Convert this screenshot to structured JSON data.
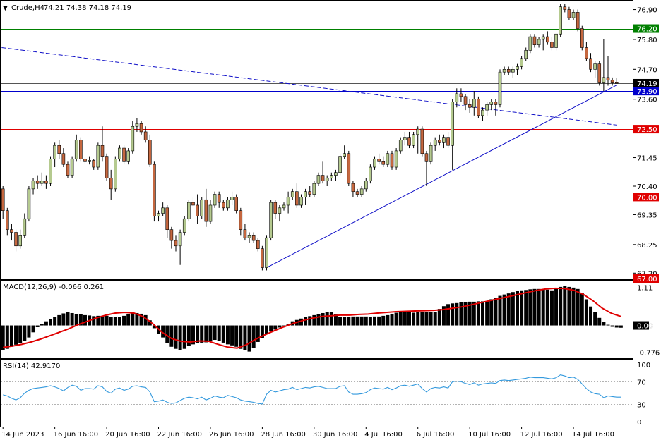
{
  "header": {
    "arrow": "▼",
    "symbol": "Crude,H4",
    "ohlc": "74.21 74.38 74.18 74.19"
  },
  "colors": {
    "bull": "#b5ca8f",
    "bear": "#c5673f",
    "wick": "#000000",
    "horizontal_green": "#008000",
    "horizontal_red": "#e00000",
    "horizontal_blue": "#0000cc",
    "trendline": "#1010c8",
    "macd_signal": "#e00000",
    "rsi_line": "#3399dd",
    "grid_dotted": "#9a9a9a"
  },
  "chart_data": {
    "type": "candlestick",
    "symbol": "Crude",
    "timeframe": "H4",
    "x_labels": [
      "14 Jun 2023",
      "16 Jun 16:00",
      "20 Jun 16:00",
      "22 Jun 16:00",
      "26 Jun 16:00",
      "28 Jun 16:00",
      "30 Jun 16:00",
      "4 Jul 16:00",
      "6 Jul 16:00",
      "10 Jul 16:00",
      "12 Jul 16:00",
      "14 Jul 16:00"
    ],
    "price_axis": {
      "ticks": [
        "76.90",
        "75.80",
        "74.70",
        "73.60",
        "71.45",
        "70.40",
        "69.35",
        "68.25",
        "67.20"
      ],
      "ylim": [
        67.0,
        77.2
      ]
    },
    "horizontal_levels": [
      {
        "value": 76.2,
        "label": "76.20",
        "color": "green"
      },
      {
        "value": 74.19,
        "label": "74.19",
        "color": "black",
        "kind": "bid"
      },
      {
        "value": 73.9,
        "label": "73.90",
        "color": "blue"
      },
      {
        "value": 72.5,
        "label": "72.50",
        "color": "red"
      },
      {
        "value": 70.0,
        "label": "70.00",
        "color": "red"
      },
      {
        "value": 67.0,
        "label": "67.00",
        "color": "red"
      }
    ],
    "candles": [
      [
        70.3,
        70.4,
        69.2,
        69.5
      ],
      [
        69.5,
        69.6,
        68.6,
        68.8
      ],
      [
        68.8,
        69.0,
        68.4,
        68.7
      ],
      [
        68.7,
        68.8,
        68.0,
        68.2
      ],
      [
        68.2,
        68.8,
        68.1,
        68.6
      ],
      [
        68.6,
        69.4,
        68.5,
        69.2
      ],
      [
        69.2,
        70.4,
        69.1,
        70.3
      ],
      [
        70.3,
        70.7,
        70.1,
        70.6
      ],
      [
        70.6,
        70.8,
        70.3,
        70.5
      ],
      [
        70.5,
        70.9,
        70.4,
        70.6
      ],
      [
        70.6,
        70.8,
        70.3,
        70.5
      ],
      [
        70.5,
        71.5,
        70.4,
        71.4
      ],
      [
        71.4,
        72.0,
        71.1,
        71.9
      ],
      [
        71.9,
        72.1,
        71.4,
        71.6
      ],
      [
        71.6,
        71.8,
        71.1,
        71.2
      ],
      [
        71.2,
        71.3,
        70.7,
        70.8
      ],
      [
        70.8,
        71.5,
        70.7,
        71.4
      ],
      [
        71.4,
        72.3,
        71.3,
        72.1
      ],
      [
        72.1,
        72.2,
        71.3,
        71.4
      ],
      [
        71.4,
        71.5,
        71.2,
        71.3
      ],
      [
        71.3,
        71.5,
        71.2,
        71.35
      ],
      [
        71.35,
        71.4,
        71.0,
        71.1
      ],
      [
        71.1,
        72.0,
        71.0,
        71.9
      ],
      [
        71.9,
        72.6,
        71.3,
        71.5
      ],
      [
        71.5,
        71.6,
        70.6,
        70.7
      ],
      [
        70.7,
        71.0,
        69.9,
        70.3
      ],
      [
        70.3,
        71.5,
        70.2,
        71.4
      ],
      [
        71.4,
        71.9,
        71.3,
        71.8
      ],
      [
        71.8,
        71.9,
        71.2,
        71.3
      ],
      [
        71.3,
        71.8,
        71.2,
        71.7
      ],
      [
        71.7,
        72.8,
        71.6,
        72.6
      ],
      [
        72.6,
        72.9,
        72.4,
        72.7
      ],
      [
        72.7,
        72.8,
        72.3,
        72.4
      ],
      [
        72.4,
        72.6,
        72.0,
        72.1
      ],
      [
        72.1,
        72.3,
        71.1,
        71.2
      ],
      [
        71.2,
        71.3,
        69.1,
        69.3
      ],
      [
        69.3,
        69.5,
        69.1,
        69.4
      ],
      [
        69.4,
        69.8,
        69.3,
        69.6
      ],
      [
        69.6,
        69.7,
        68.5,
        68.8
      ],
      [
        68.8,
        68.9,
        68.1,
        68.4
      ],
      [
        68.4,
        68.6,
        68.0,
        68.2
      ],
      [
        68.2,
        68.8,
        67.5,
        68.7
      ],
      [
        68.7,
        69.3,
        68.6,
        69.2
      ],
      [
        69.2,
        69.9,
        69.1,
        69.8
      ],
      [
        69.8,
        70.0,
        69.6,
        69.7
      ],
      [
        69.7,
        70.1,
        69.0,
        69.3
      ],
      [
        69.3,
        70.0,
        69.2,
        69.9
      ],
      [
        69.9,
        70.3,
        68.9,
        69.1
      ],
      [
        69.1,
        69.9,
        69.0,
        69.7
      ],
      [
        69.7,
        70.2,
        69.6,
        70.1
      ],
      [
        70.1,
        70.2,
        69.6,
        69.8
      ],
      [
        69.8,
        69.9,
        69.5,
        69.6
      ],
      [
        69.6,
        70.0,
        69.5,
        69.9
      ],
      [
        69.9,
        70.2,
        69.7,
        70.0
      ],
      [
        70.0,
        70.1,
        69.4,
        69.5
      ],
      [
        69.5,
        69.6,
        68.6,
        68.8
      ],
      [
        68.8,
        69.0,
        68.4,
        68.5
      ],
      [
        68.5,
        68.7,
        68.3,
        68.6
      ],
      [
        68.6,
        68.7,
        68.3,
        68.4
      ],
      [
        68.4,
        68.5,
        68.0,
        68.1
      ],
      [
        68.1,
        68.2,
        67.3,
        67.4
      ],
      [
        67.4,
        68.6,
        67.3,
        68.5
      ],
      [
        68.5,
        69.9,
        68.4,
        69.8
      ],
      [
        69.8,
        69.9,
        69.2,
        69.4
      ],
      [
        69.4,
        69.7,
        69.1,
        69.6
      ],
      [
        69.6,
        69.8,
        69.5,
        69.7
      ],
      [
        69.7,
        70.2,
        69.4,
        70.0
      ],
      [
        70.0,
        70.3,
        69.9,
        70.2
      ],
      [
        70.2,
        70.5,
        69.6,
        69.7
      ],
      [
        69.7,
        70.1,
        69.6,
        70.0
      ],
      [
        70.0,
        70.3,
        69.7,
        70.2
      ],
      [
        70.2,
        70.4,
        70.0,
        70.1
      ],
      [
        70.1,
        70.6,
        70.0,
        70.5
      ],
      [
        70.5,
        70.9,
        70.4,
        70.8
      ],
      [
        70.8,
        71.3,
        70.5,
        70.6
      ],
      [
        70.6,
        70.8,
        70.4,
        70.7
      ],
      [
        70.7,
        70.9,
        70.6,
        70.8
      ],
      [
        70.8,
        71.0,
        70.6,
        70.9
      ],
      [
        70.9,
        71.6,
        70.8,
        71.5
      ],
      [
        71.5,
        71.9,
        71.4,
        71.6
      ],
      [
        71.6,
        71.7,
        70.4,
        70.5
      ],
      [
        70.5,
        70.6,
        70.0,
        70.2
      ],
      [
        70.2,
        70.3,
        70.0,
        70.1
      ],
      [
        70.1,
        70.4,
        70.0,
        70.3
      ],
      [
        70.3,
        70.7,
        70.2,
        70.6
      ],
      [
        70.6,
        71.2,
        70.5,
        71.1
      ],
      [
        71.1,
        71.5,
        71.0,
        71.4
      ],
      [
        71.4,
        71.6,
        71.2,
        71.3
      ],
      [
        71.3,
        71.5,
        71.1,
        71.2
      ],
      [
        71.2,
        71.7,
        71.1,
        71.6
      ],
      [
        71.6,
        71.7,
        71.0,
        71.1
      ],
      [
        71.1,
        71.8,
        71.0,
        71.7
      ],
      [
        71.7,
        72.2,
        71.6,
        72.1
      ],
      [
        72.1,
        72.4,
        71.9,
        72.2
      ],
      [
        72.2,
        72.4,
        71.8,
        71.9
      ],
      [
        71.9,
        72.4,
        71.8,
        72.3
      ],
      [
        72.3,
        72.6,
        71.6,
        72.5
      ],
      [
        72.5,
        72.6,
        71.5,
        71.6
      ],
      [
        71.6,
        71.7,
        70.4,
        71.3
      ],
      [
        71.3,
        72.0,
        71.2,
        71.9
      ],
      [
        71.9,
        72.2,
        71.7,
        72.1
      ],
      [
        72.1,
        72.3,
        71.9,
        72.0
      ],
      [
        72.0,
        72.3,
        71.8,
        72.2
      ],
      [
        72.2,
        72.4,
        71.8,
        71.9
      ],
      [
        71.9,
        73.6,
        71.0,
        73.5
      ],
      [
        73.5,
        74.0,
        73.3,
        73.8
      ],
      [
        73.8,
        74.0,
        73.5,
        73.7
      ],
      [
        73.7,
        73.8,
        73.2,
        73.4
      ],
      [
        73.4,
        73.6,
        73.1,
        73.3
      ],
      [
        73.3,
        73.9,
        73.0,
        73.6
      ],
      [
        73.6,
        73.7,
        72.9,
        73.0
      ],
      [
        73.0,
        73.3,
        72.8,
        73.2
      ],
      [
        73.2,
        73.5,
        73.0,
        73.4
      ],
      [
        73.4,
        73.6,
        73.2,
        73.5
      ],
      [
        73.5,
        73.6,
        73.0,
        73.4
      ],
      [
        73.4,
        74.7,
        73.3,
        74.6
      ],
      [
        74.6,
        74.8,
        74.5,
        74.7
      ],
      [
        74.7,
        74.8,
        74.5,
        74.6
      ],
      [
        74.6,
        74.8,
        74.4,
        74.7
      ],
      [
        74.7,
        74.9,
        74.5,
        74.8
      ],
      [
        74.8,
        75.2,
        74.7,
        75.1
      ],
      [
        75.1,
        75.5,
        75.0,
        75.4
      ],
      [
        75.4,
        76.0,
        75.3,
        75.9
      ],
      [
        75.9,
        76.0,
        75.5,
        75.6
      ],
      [
        75.6,
        75.9,
        75.5,
        75.8
      ],
      [
        75.8,
        76.0,
        75.4,
        75.9
      ],
      [
        75.9,
        76.1,
        75.6,
        75.7
      ],
      [
        75.7,
        75.9,
        75.4,
        75.5
      ],
      [
        75.5,
        76.0,
        75.4,
        76.0
      ],
      [
        76.0,
        77.1,
        75.9,
        77.0
      ],
      [
        77.0,
        77.1,
        76.8,
        76.9
      ],
      [
        76.9,
        77.0,
        76.5,
        76.6
      ],
      [
        76.6,
        76.9,
        76.5,
        76.8
      ],
      [
        76.8,
        76.9,
        76.1,
        76.2
      ],
      [
        76.2,
        76.3,
        75.4,
        75.5
      ],
      [
        75.5,
        75.7,
        75.0,
        75.1
      ],
      [
        75.1,
        75.3,
        74.6,
        74.7
      ],
      [
        74.7,
        75.0,
        74.4,
        74.9
      ],
      [
        74.9,
        75.0,
        74.1,
        74.2
      ],
      [
        74.2,
        75.8,
        73.9,
        74.4
      ],
      [
        74.4,
        75.2,
        74.1,
        74.3
      ],
      [
        74.3,
        74.4,
        74.1,
        74.2
      ],
      [
        74.21,
        74.38,
        74.18,
        74.19
      ]
    ],
    "trendlines": [
      {
        "name": "rising",
        "style": "solid",
        "from": [
          61,
          67.4
        ],
        "to": [
          142,
          74.12
        ]
      },
      {
        "name": "falling",
        "style": "dashed",
        "from": [
          -0.3,
          75.5
        ],
        "to": [
          142,
          72.65
        ]
      }
    ],
    "macd": {
      "label": "MACD(12,26,9) -0.066 0.261",
      "ticks": [
        "1.11",
        "0.00",
        "-0.776"
      ],
      "ylim": [
        -0.85,
        1.2
      ],
      "zero_label": "0.00",
      "histogram": [
        -0.72,
        -0.68,
        -0.62,
        -0.56,
        -0.52,
        -0.45,
        -0.35,
        -0.2,
        -0.05,
        0.05,
        0.12,
        0.18,
        0.25,
        0.3,
        0.35,
        0.38,
        0.36,
        0.33,
        0.32,
        0.3,
        0.29,
        0.27,
        0.28,
        0.28,
        0.28,
        0.25,
        0.24,
        0.25,
        0.28,
        0.32,
        0.35,
        0.36,
        0.34,
        0.3,
        0.15,
        -0.08,
        -0.25,
        -0.35,
        -0.52,
        -0.62,
        -0.68,
        -0.72,
        -0.68,
        -0.6,
        -0.55,
        -0.52,
        -0.5,
        -0.49,
        -0.44,
        -0.42,
        -0.45,
        -0.5,
        -0.55,
        -0.58,
        -0.62,
        -0.68,
        -0.72,
        -0.76,
        -0.66,
        -0.48,
        -0.36,
        -0.25,
        -0.18,
        -0.12,
        -0.06,
        0.0,
        0.05,
        0.12,
        0.16,
        0.2,
        0.24,
        0.27,
        0.3,
        0.33,
        0.36,
        0.38,
        0.39,
        0.33,
        0.24,
        0.24,
        0.25,
        0.26,
        0.26,
        0.26,
        0.26,
        0.25,
        0.26,
        0.26,
        0.28,
        0.3,
        0.34,
        0.37,
        0.39,
        0.4,
        0.38,
        0.37,
        0.38,
        0.4,
        0.4,
        0.39,
        0.38,
        0.48,
        0.56,
        0.62,
        0.64,
        0.65,
        0.67,
        0.68,
        0.69,
        0.69,
        0.7,
        0.7,
        0.7,
        0.76,
        0.81,
        0.86,
        0.9,
        0.93,
        0.97,
        1.0,
        1.02,
        1.03,
        1.05,
        1.06,
        1.06,
        1.05,
        1.04,
        1.02,
        1.06,
        1.12,
        1.14,
        1.12,
        1.1,
        1.06,
        0.94,
        0.76,
        0.55,
        0.38,
        0.22,
        0.1,
        0.02,
        -0.04,
        -0.06,
        -0.066
      ],
      "signal": [
        -0.64,
        -0.6,
        -0.55,
        -0.48,
        -0.4,
        -0.3,
        -0.2,
        -0.1,
        0.02,
        0.12,
        0.22,
        0.3,
        0.36,
        0.38,
        0.36,
        0.25,
        0.05,
        -0.2,
        -0.38,
        -0.46,
        -0.48,
        -0.45,
        -0.46,
        -0.55,
        -0.63,
        -0.66,
        -0.56,
        -0.4,
        -0.27,
        -0.15,
        -0.04,
        0.06,
        0.14,
        0.21,
        0.26,
        0.28,
        0.3,
        0.3,
        0.32,
        0.33,
        0.36,
        0.38,
        0.4,
        0.41,
        0.42,
        0.43,
        0.44,
        0.46,
        0.5,
        0.54,
        0.6,
        0.66,
        0.72,
        0.78,
        0.84,
        0.9,
        0.96,
        1.02,
        1.06,
        1.08,
        1.07,
        1.02,
        0.9,
        0.72,
        0.5,
        0.35,
        0.261
      ]
    },
    "rsi": {
      "label": "RSI(14) 42.9170",
      "ticks": [
        "100",
        "70",
        "30",
        "0"
      ],
      "levels": [
        70,
        30
      ],
      "ylim": [
        0,
        100
      ],
      "values": [
        47,
        45,
        41,
        38,
        42,
        50,
        55,
        58,
        59,
        60,
        61,
        63,
        61,
        58,
        54,
        60,
        64,
        62,
        55,
        58,
        58,
        57,
        63,
        61,
        53,
        50,
        57,
        59,
        55,
        57,
        62,
        63,
        61,
        60,
        52,
        35,
        36,
        38,
        34,
        32,
        33,
        37,
        41,
        43,
        42,
        40,
        43,
        38,
        41,
        45,
        43,
        42,
        46,
        44,
        42,
        38,
        36,
        35,
        34,
        32,
        31,
        48,
        55,
        52,
        54,
        56,
        57,
        60,
        56,
        58,
        60,
        59,
        61,
        62,
        60,
        58,
        58,
        58,
        62,
        63,
        52,
        48,
        48,
        49,
        51,
        56,
        59,
        58,
        57,
        60,
        56,
        59,
        63,
        64,
        62,
        64,
        66,
        58,
        52,
        58,
        60,
        59,
        61,
        59,
        70,
        71,
        70,
        67,
        65,
        68,
        64,
        66,
        67,
        68,
        67,
        72,
        73,
        72,
        73,
        74,
        75,
        76,
        78,
        77,
        77,
        77,
        76,
        75,
        77,
        82,
        80,
        77,
        78,
        74,
        66,
        58,
        52,
        49,
        48,
        42,
        45,
        44,
        43,
        42.917
      ]
    }
  }
}
